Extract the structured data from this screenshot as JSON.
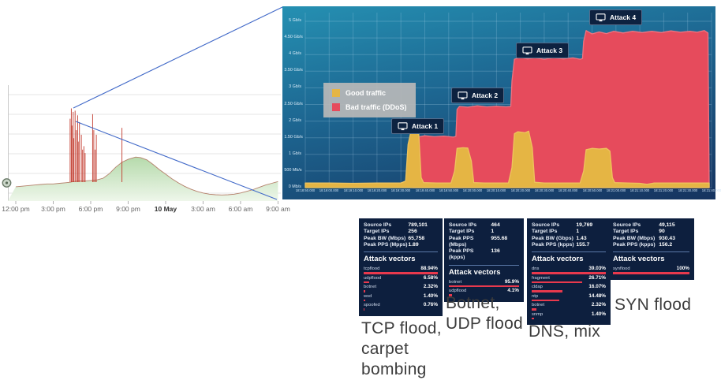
{
  "colors": {
    "good_traffic": "#e5b544",
    "good_traffic_edge": "#eec35e",
    "bad_traffic": "#e64b5c",
    "bad_traffic_edge": "#f0737f",
    "vector_bar": "#e8394d",
    "card_bg": "#0d1f3e",
    "badge_bg": "#0d2240",
    "projection_line": "#4169c8",
    "overview_line": "#b5806b",
    "overview_spike": "#c23b2e",
    "panel_gradient_top": "#2590b2",
    "panel_gradient_bottom": "#16335f"
  },
  "legend": {
    "good": "Good traffic",
    "bad": "Bad traffic (DDoS)"
  },
  "cards_heading": "Attack vectors",
  "cards": [
    {
      "stats": [
        {
          "label": "Source IPs",
          "value": "789,101"
        },
        {
          "label": "Target IPs",
          "value": "256"
        },
        {
          "label": "Peak BW (Mbps)",
          "value": "65,758"
        },
        {
          "label": "Peak PPS (Mpps)",
          "value": "1.89"
        }
      ],
      "vectors": [
        {
          "name": "tcpflood",
          "pct": "88.94%",
          "value": 88.94
        },
        {
          "name": "udpflood",
          "pct": "6.58%",
          "value": 6.58
        },
        {
          "name": "botnet",
          "pct": "2.32%",
          "value": 2.32
        },
        {
          "name": "wsd",
          "pct": "1.40%",
          "value": 1.4
        },
        {
          "name": "spoofed",
          "pct": "0.76%",
          "value": 0.76
        }
      ],
      "caption_lines": [
        "TCP flood,",
        "carpet",
        "bombing"
      ]
    },
    {
      "stats": [
        {
          "label": "Source IPs",
          "value": "464"
        },
        {
          "label": "Target IPs",
          "value": "1"
        },
        {
          "label": "Peak PPS (Mbps)",
          "value": "955.68"
        },
        {
          "label": "Peak PPS (kpps)",
          "value": "136"
        }
      ],
      "vectors": [
        {
          "name": "botnet",
          "pct": "95.9%",
          "value": 95.9
        },
        {
          "name": "udpflood",
          "pct": "4.1%",
          "value": 4.1
        }
      ],
      "caption_lines": [
        "Botnet,",
        "UDP flood"
      ]
    },
    {
      "stats": [
        {
          "label": "Source IPs",
          "value": "19,769"
        },
        {
          "label": "Target IPs",
          "value": "1"
        },
        {
          "label": "Peak BW (Gbps)",
          "value": "1.43"
        },
        {
          "label": "Peak PPS (kpps)",
          "value": "155.7"
        }
      ],
      "vectors": [
        {
          "name": "dns",
          "pct": "39.03%",
          "value": 39.03
        },
        {
          "name": "fragment",
          "pct": "26.71%",
          "value": 26.71
        },
        {
          "name": "cldap",
          "pct": "16.07%",
          "value": 16.07
        },
        {
          "name": "ntp",
          "pct": "14.48%",
          "value": 14.48
        },
        {
          "name": "botnet",
          "pct": "2.32%",
          "value": 2.32
        },
        {
          "name": "snmp",
          "pct": "1.40%",
          "value": 1.4
        }
      ],
      "caption_lines": [
        "DNS, mix"
      ]
    },
    {
      "stats": [
        {
          "label": "Source IPs",
          "value": "49,115"
        },
        {
          "label": "Target IPs",
          "value": "90"
        },
        {
          "label": "Peak BW (Mbps)",
          "value": "930.43"
        },
        {
          "label": "Peak PPS (kpps)",
          "value": "156.2"
        }
      ],
      "vectors": [
        {
          "name": "synflood",
          "pct": "100%",
          "value": 100
        }
      ],
      "caption_lines": [
        "SYN flood"
      ]
    }
  ],
  "chart_data": [
    {
      "type": "area",
      "name": "traffic-overview",
      "title": "",
      "xlabel": "",
      "ylabel": "",
      "grid": true,
      "x_ticks": [
        "12:00 pm",
        "3:00 pm",
        "6:00 pm",
        "9:00 pm",
        "10 May",
        "3:00 am",
        "6:00 am",
        "9:00 am"
      ],
      "x_tick_hours": [
        0,
        3,
        6,
        9,
        12,
        15,
        18,
        21
      ],
      "bold_tick": "10 May",
      "series": [
        {
          "name": "normal-traffic",
          "units": "relative 0-1",
          "points": [
            [
              0,
              0.125
            ],
            [
              0.5,
              0.13
            ],
            [
              1,
              0.135
            ],
            [
              1.5,
              0.14
            ],
            [
              2,
              0.145
            ],
            [
              2.5,
              0.15
            ],
            [
              3,
              0.15
            ],
            [
              3.5,
              0.155
            ],
            [
              4,
              0.16
            ],
            [
              4.4,
              0.165
            ],
            [
              4.6,
              0.17
            ],
            [
              5,
              0.175
            ],
            [
              5.5,
              0.175
            ],
            [
              6,
              0.18
            ],
            [
              6.5,
              0.185
            ],
            [
              7,
              0.2
            ],
            [
              7.5,
              0.24
            ],
            [
              8,
              0.295
            ],
            [
              8.5,
              0.34
            ],
            [
              9,
              0.365
            ],
            [
              9.6,
              0.385
            ],
            [
              10,
              0.38
            ],
            [
              10.5,
              0.36
            ],
            [
              11,
              0.32
            ],
            [
              11.5,
              0.275
            ],
            [
              12,
              0.235
            ],
            [
              12.5,
              0.195
            ],
            [
              13,
              0.16
            ],
            [
              13.5,
              0.13
            ],
            [
              14,
              0.105
            ],
            [
              14.5,
              0.085
            ],
            [
              15,
              0.07
            ],
            [
              15.5,
              0.06
            ],
            [
              16,
              0.055
            ],
            [
              16.5,
              0.053
            ],
            [
              17,
              0.055
            ],
            [
              17.5,
              0.06
            ],
            [
              18,
              0.07
            ],
            [
              18.5,
              0.085
            ],
            [
              19,
              0.1
            ],
            [
              19.5,
              0.12
            ],
            [
              20,
              0.14
            ],
            [
              20.5,
              0.155
            ],
            [
              21,
              0.17
            ]
          ]
        }
      ],
      "spikes": {
        "name": "ddos-spikes",
        "points": [
          [
            4.35,
            0.72
          ],
          [
            4.45,
            0.81
          ],
          [
            4.5,
            0.66
          ],
          [
            4.6,
            0.78
          ],
          [
            4.65,
            0.55
          ],
          [
            4.75,
            0.79
          ],
          [
            4.85,
            0.62
          ],
          [
            4.95,
            0.75
          ],
          [
            5.0,
            0.52
          ],
          [
            5.1,
            0.69
          ],
          [
            5.25,
            0.58
          ],
          [
            5.35,
            0.45
          ],
          [
            5.45,
            0.48
          ],
          [
            5.55,
            0.42
          ],
          [
            6.15,
            0.76
          ],
          [
            6.25,
            0.62
          ],
          [
            6.35,
            0.45
          ],
          [
            6.45,
            0.58
          ],
          [
            8.5,
            0.64
          ]
        ]
      }
    },
    {
      "type": "stacked-area",
      "name": "ddos-zoom-chart",
      "title": "",
      "xlabel": "",
      "ylabel": "",
      "grid": true,
      "legend_position": "middle-left",
      "y_max_gbps": 5,
      "y_ticks": [
        "5 Gb/s",
        "4.50 Gb/s",
        "4 Gb/s",
        "3.50 Gb/s",
        "3 Gb/s",
        "2.50 Gb/s",
        "2 Gb/s",
        "1.50 Gb/s",
        "1 Gb/s",
        "500 Mb/s",
        "0 Mb/s"
      ],
      "x_ticks": [
        "18:18:50.000",
        "18:19:00.000",
        "18:19:10.000",
        "18:19:20.000",
        "18:19:30.000",
        "18:19:40.000",
        "18:19:50.000",
        "18:20:00.000",
        "18:20:10.000",
        "18:20:20.000",
        "18:20:30.000",
        "18:20:40.000",
        "18:20:50.000",
        "18:21:00.000",
        "18:21:10.000",
        "18:21:20.000",
        "18:21:30.000",
        "18:21:40.000"
      ],
      "x_tick_seconds": [
        0,
        10,
        20,
        30,
        40,
        50,
        60,
        70,
        80,
        90,
        100,
        110,
        120,
        130,
        140,
        150,
        160,
        170
      ],
      "series": [
        {
          "name": "Good traffic",
          "units": "Gbps",
          "points": [
            [
              0,
              0.14
            ],
            [
              10,
              0.14
            ],
            [
              20,
              0.13
            ],
            [
              30,
              0.14
            ],
            [
              40,
              0.14
            ],
            [
              42,
              0.2
            ],
            [
              43,
              1.3
            ],
            [
              44,
              1.62
            ],
            [
              46,
              1.66
            ],
            [
              47.5,
              1.6
            ],
            [
              48.5,
              0.3
            ],
            [
              49.5,
              0.15
            ],
            [
              55,
              0.14
            ],
            [
              61,
              0.14
            ],
            [
              62.5,
              0.5
            ],
            [
              63.5,
              1.18
            ],
            [
              66,
              1.2
            ],
            [
              68,
              1.19
            ],
            [
              69.5,
              0.8
            ],
            [
              70.5,
              0.15
            ],
            [
              75,
              0.14
            ],
            [
              80,
              0.14
            ],
            [
              85,
              0.14
            ],
            [
              86.5,
              0.6
            ],
            [
              87.5,
              1.62
            ],
            [
              89,
              1.68
            ],
            [
              92,
              1.65
            ],
            [
              93.5,
              1.7
            ],
            [
              95,
              1.2
            ],
            [
              96,
              0.16
            ],
            [
              100,
              0.14
            ],
            [
              105,
              0.14
            ],
            [
              110,
              0.14
            ],
            [
              115,
              0.14
            ],
            [
              116.5,
              0.5
            ],
            [
              117.5,
              1.14
            ],
            [
              120,
              1.18
            ],
            [
              123,
              1.16
            ],
            [
              126,
              1.18
            ],
            [
              127.5,
              1.1
            ],
            [
              128.5,
              0.3
            ],
            [
              129.5,
              0.15
            ],
            [
              135,
              0.14
            ],
            [
              140,
              0.13
            ],
            [
              143,
              0.1
            ],
            [
              146,
              0.14
            ],
            [
              152,
              0.14
            ],
            [
              158,
              0.14
            ],
            [
              163,
              0.14
            ],
            [
              169,
              0.14
            ]
          ]
        },
        {
          "name": "Bad traffic (DDoS)",
          "units": "Gbps",
          "points": [
            [
              45,
              0.15
            ],
            [
              46,
              1.3
            ],
            [
              47,
              1.52
            ],
            [
              50,
              1.56
            ],
            [
              54,
              1.53
            ],
            [
              58,
              1.55
            ],
            [
              62,
              1.52
            ],
            [
              63,
              1.54
            ],
            [
              63.5,
              2.35
            ],
            [
              64.5,
              2.44
            ],
            [
              68,
              2.42
            ],
            [
              72,
              2.46
            ],
            [
              76,
              2.43
            ],
            [
              80,
              2.45
            ],
            [
              84,
              2.43
            ],
            [
              86,
              2.44
            ],
            [
              86.5,
              3.2
            ],
            [
              87.5,
              3.86
            ],
            [
              90,
              3.92
            ],
            [
              93,
              3.87
            ],
            [
              96,
              3.9
            ],
            [
              100,
              3.86
            ],
            [
              104,
              3.9
            ],
            [
              108,
              3.87
            ],
            [
              112,
              3.9
            ],
            [
              115,
              3.86
            ],
            [
              116,
              3.88
            ],
            [
              116.5,
              4.4
            ],
            [
              117.5,
              4.72
            ],
            [
              120,
              4.62
            ],
            [
              123,
              4.68
            ],
            [
              126,
              4.63
            ],
            [
              129,
              4.7
            ],
            [
              133,
              4.65
            ],
            [
              137,
              4.7
            ],
            [
              141,
              4.66
            ],
            [
              145,
              4.7
            ],
            [
              149,
              4.66
            ],
            [
              153,
              4.71
            ],
            [
              157,
              4.67
            ],
            [
              161,
              4.7
            ],
            [
              164,
              4.67
            ],
            [
              167,
              4.72
            ],
            [
              168.5,
              4.65
            ],
            [
              169,
              0.15
            ]
          ]
        }
      ],
      "annotations": [
        {
          "label": "Attack 1",
          "t": 36,
          "gbps": 2.08
        },
        {
          "label": "Attack 2",
          "t": 61,
          "gbps": 3.0
        },
        {
          "label": "Attack 3",
          "t": 88,
          "gbps": 4.36
        },
        {
          "label": "Attack 4",
          "t": 119,
          "gbps": 5.35
        }
      ]
    }
  ]
}
